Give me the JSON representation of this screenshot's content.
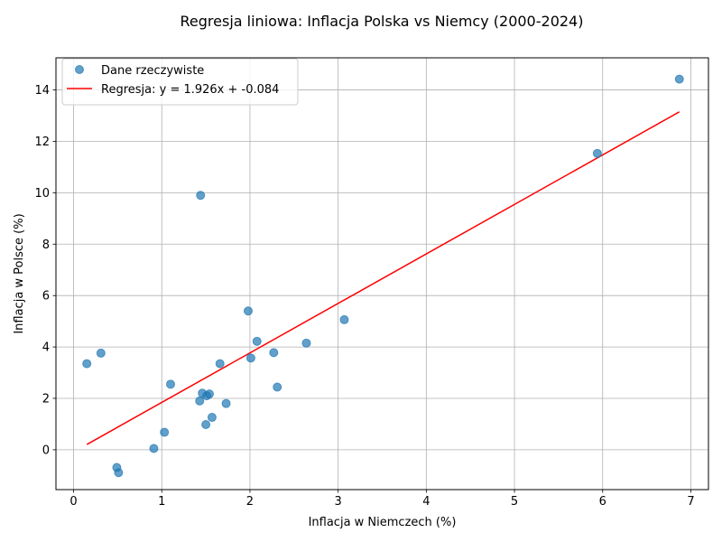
{
  "chart_data": {
    "type": "scatter",
    "title": "Regresja liniowa: Inflacja Polska vs Niemcy (2000-2024)",
    "xlabel": "Inflacja w Niemczech (%)",
    "ylabel": "Inflacja w Polsce (%)",
    "xlim": [
      -0.2,
      7.2
    ],
    "ylim": [
      -1.55,
      15.25
    ],
    "xticks": [
      0,
      1,
      2,
      3,
      4,
      5,
      6,
      7
    ],
    "yticks": [
      0,
      2,
      4,
      6,
      8,
      10,
      12,
      14
    ],
    "grid": true,
    "legend_position": "top-left",
    "series": [
      {
        "name": "Dane rzeczywiste",
        "kind": "scatter",
        "color": "#1f77b4",
        "points": [
          {
            "x": 0.15,
            "y": 3.35
          },
          {
            "x": 0.31,
            "y": 3.76
          },
          {
            "x": 0.49,
            "y": -0.69
          },
          {
            "x": 0.51,
            "y": -0.89
          },
          {
            "x": 0.91,
            "y": 0.05
          },
          {
            "x": 1.03,
            "y": 0.68
          },
          {
            "x": 1.1,
            "y": 2.55
          },
          {
            "x": 1.43,
            "y": 1.9
          },
          {
            "x": 1.44,
            "y": 9.9
          },
          {
            "x": 1.46,
            "y": 2.2
          },
          {
            "x": 1.5,
            "y": 0.98
          },
          {
            "x": 1.51,
            "y": 2.1
          },
          {
            "x": 1.54,
            "y": 2.17
          },
          {
            "x": 1.57,
            "y": 1.26
          },
          {
            "x": 1.66,
            "y": 3.35
          },
          {
            "x": 1.73,
            "y": 1.8
          },
          {
            "x": 1.98,
            "y": 5.4
          },
          {
            "x": 2.01,
            "y": 3.57
          },
          {
            "x": 2.08,
            "y": 4.22
          },
          {
            "x": 2.27,
            "y": 3.78
          },
          {
            "x": 2.31,
            "y": 2.44
          },
          {
            "x": 2.64,
            "y": 4.15
          },
          {
            "x": 3.07,
            "y": 5.06
          },
          {
            "x": 5.94,
            "y": 11.53
          },
          {
            "x": 6.87,
            "y": 14.42
          }
        ]
      },
      {
        "name": "Regresja: y = 1.926x + -0.084",
        "kind": "line",
        "color": "#ff0000",
        "slope": 1.926,
        "intercept": -0.084,
        "x_range": [
          0.15,
          6.87
        ]
      }
    ]
  }
}
